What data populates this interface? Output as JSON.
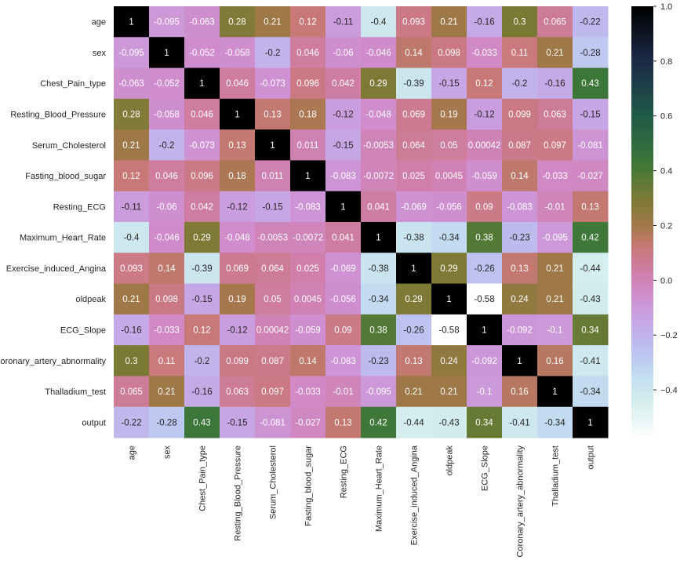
{
  "chart_data": {
    "type": "heatmap",
    "title": "",
    "xlabel": "",
    "ylabel": "",
    "colormap": "cubehelix (light = low, black = high)",
    "color_range": [
      -0.58,
      1.0
    ],
    "colorbar_ticks": [
      "1.0",
      "0.8",
      "0.6",
      "0.4",
      "0.2",
      "0.0",
      "−0.2",
      "−0.4"
    ],
    "colorbar_tick_values": [
      1.0,
      0.8,
      0.6,
      0.4,
      0.2,
      0.0,
      -0.2,
      -0.4
    ],
    "color_stops": [
      {
        "v": -0.58,
        "c": "#ffffff"
      },
      {
        "v": -0.45,
        "c": "#d6efee"
      },
      {
        "v": -0.35,
        "c": "#c3def0"
      },
      {
        "v": -0.25,
        "c": "#bcbff0"
      },
      {
        "v": -0.15,
        "c": "#c7a6e6"
      },
      {
        "v": -0.05,
        "c": "#d08ccc"
      },
      {
        "v": 0.03,
        "c": "#cf7ea8"
      },
      {
        "v": 0.12,
        "c": "#c97878"
      },
      {
        "v": 0.2,
        "c": "#a27848"
      },
      {
        "v": 0.3,
        "c": "#7a7a34"
      },
      {
        "v": 0.42,
        "c": "#3f7838"
      },
      {
        "v": 0.6,
        "c": "#1f5a48"
      },
      {
        "v": 0.8,
        "c": "#1c2a48"
      },
      {
        "v": 1.0,
        "c": "#000000"
      }
    ],
    "labels": [
      "age",
      "sex",
      "Chest_Pain_type",
      "Resting_Blood_Pressure",
      "Serum_Cholesterol",
      "Fasting_blood_sugar",
      "Resting_ECG",
      "Maximum_Heart_Rate",
      "Exercise_induced_Angina",
      "oldpeak",
      "ECG_Slope",
      "Coronary_artery_abnormality",
      "Thalladium_test",
      "output"
    ],
    "values": [
      [
        "1",
        "-0.095",
        "-0.063",
        "0.28",
        "0.21",
        "0.12",
        "-0.11",
        "-0.4",
        "0.093",
        "0.21",
        "-0.16",
        "0.3",
        "0.065",
        "-0.22"
      ],
      [
        "-0.095",
        "1",
        "-0.052",
        "-0.058",
        "-0.2",
        "0.046",
        "-0.06",
        "-0.046",
        "0.14",
        "0.098",
        "-0.033",
        "0.11",
        "0.21",
        "-0.28"
      ],
      [
        "-0.063",
        "-0.052",
        "1",
        "0.046",
        "-0.073",
        "0.096",
        "0.042",
        "0.29",
        "-0.39",
        "-0.15",
        "0.12",
        "-0.2",
        "-0.16",
        "0.43"
      ],
      [
        "0.28",
        "-0.058",
        "0.046",
        "1",
        "0.13",
        "0.18",
        "-0.12",
        "-0.048",
        "0.069",
        "0.19",
        "-0.12",
        "0.099",
        "0.063",
        "-0.15"
      ],
      [
        "0.21",
        "-0.2",
        "-0.073",
        "0.13",
        "1",
        "0.011",
        "-0.15",
        "-0.0053",
        "0.064",
        "0.05",
        "0.00042",
        "0.087",
        "0.097",
        "-0.081"
      ],
      [
        "0.12",
        "0.046",
        "0.096",
        "0.18",
        "0.011",
        "1",
        "-0.083",
        "-0.0072",
        "0.025",
        "0.0045",
        "-0.059",
        "0.14",
        "-0.033",
        "-0.027"
      ],
      [
        "-0.11",
        "-0.06",
        "0.042",
        "-0.12",
        "-0.15",
        "-0.083",
        "1",
        "0.041",
        "-0.069",
        "-0.056",
        "0.09",
        "-0.083",
        "-0.01",
        "0.13"
      ],
      [
        "-0.4",
        "-0.046",
        "0.29",
        "-0.048",
        "-0.0053",
        "-0.0072",
        "0.041",
        "1",
        "-0.38",
        "-0.34",
        "0.38",
        "-0.23",
        "-0.095",
        "0.42"
      ],
      [
        "0.093",
        "0.14",
        "-0.39",
        "0.069",
        "0.064",
        "0.025",
        "-0.069",
        "-0.38",
        "1",
        "0.29",
        "-0.26",
        "0.13",
        "0.21",
        "-0.44"
      ],
      [
        "0.21",
        "0.098",
        "-0.15",
        "0.19",
        "0.05",
        "0.0045",
        "-0.056",
        "-0.34",
        "0.29",
        "1",
        "-0.58",
        "0.24",
        "0.21",
        "-0.43"
      ],
      [
        "-0.16",
        "-0.033",
        "0.12",
        "-0.12",
        "0.00042",
        "-0.059",
        "0.09",
        "0.38",
        "-0.26",
        "-0.58",
        "1",
        "-0.092",
        "-0.1",
        "0.34"
      ],
      [
        "0.3",
        "0.11",
        "-0.2",
        "0.099",
        "0.087",
        "0.14",
        "-0.083",
        "-0.23",
        "0.13",
        "0.24",
        "-0.092",
        "1",
        "0.16",
        "-0.41"
      ],
      [
        "0.065",
        "0.21",
        "-0.16",
        "0.063",
        "0.097",
        "-0.033",
        "-0.01",
        "-0.095",
        "0.21",
        "0.21",
        "-0.1",
        "0.16",
        "1",
        "-0.34"
      ],
      [
        "-0.22",
        "-0.28",
        "0.43",
        "-0.15",
        "-0.081",
        "-0.027",
        "0.13",
        "0.42",
        "-0.44",
        "-0.43",
        "0.34",
        "-0.41",
        "-0.34",
        "1"
      ]
    ]
  }
}
